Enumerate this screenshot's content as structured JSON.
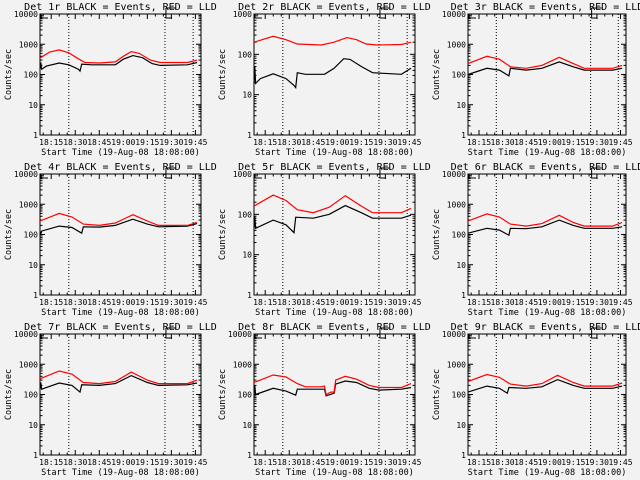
{
  "colors": {
    "background": "#f2f2f2",
    "events": "#000000",
    "lld": "#ff0000",
    "axis": "#000000"
  },
  "chart_data": {
    "type": "line",
    "layout": "3x3 grid",
    "xlabel": "Start Time (19-Aug-08 18:08:00)",
    "ylabel": "Counts/sec",
    "x_units": "minutes after 18:00",
    "xlim": [
      8,
      108.5
    ],
    "x_ticks": [
      15,
      30,
      45,
      60,
      75,
      90,
      105
    ],
    "x_tick_labels": [
      "18:15",
      "18:30",
      "18:45",
      "19:00",
      "19:15",
      "19:30",
      "19:45"
    ],
    "y_scale": "log",
    "vertical_markers": [
      26,
      86,
      103.6
    ],
    "legend": "in titles: BLACK = Events, RED = LLD",
    "panels": [
      {
        "title": "Det 1r BLACK = Events, RED = LLD",
        "ylim": [
          1,
          10000
        ],
        "y_tick_labels": [
          "10000",
          "1000",
          "100",
          "10",
          "1"
        ],
        "series": [
          {
            "name": "Events",
            "color": "black",
            "t": [
              8,
              8.5,
              9,
              12,
              20,
              26,
              32,
              33,
              34,
              40,
              55,
              60,
              66,
              72,
              78,
              83,
              100,
              106
            ],
            "v": [
              150,
              250,
              150,
              190,
              240,
              210,
              150,
              130,
              220,
              210,
              210,
              320,
              420,
              360,
              230,
              200,
              210,
              250
            ]
          },
          {
            "name": "LLD",
            "color": "red",
            "t": [
              8,
              14,
              20,
              26,
              32,
              36,
              45,
              55,
              60,
              65,
              70,
              77,
              83,
              100,
              106
            ],
            "v": [
              350,
              550,
              650,
              520,
              330,
              250,
              240,
              260,
              400,
              570,
              500,
              300,
              250,
              250,
              300
            ]
          }
        ]
      },
      {
        "title": "Det 2r BLACK = Events, RED = LLD",
        "ylim": [
          1,
          1000
        ],
        "y_tick_labels": [
          "1000",
          "100",
          "10",
          "1"
        ],
        "series": [
          {
            "name": "Events",
            "color": "black",
            "t": [
              8,
              8.5,
              9,
              12,
              20,
              28,
              33,
              34,
              35,
              40,
              52,
              58,
              64,
              68,
              75,
              82,
              100,
              106
            ],
            "v": [
              19,
              50,
              19,
              25,
              33,
              25,
              17,
              15,
              35,
              32,
              32,
              45,
              78,
              75,
              50,
              35,
              32,
              45
            ]
          },
          {
            "name": "LLD",
            "color": "red",
            "t": [
              8,
              20,
              28,
              35,
              50,
              58,
              66,
              72,
              78,
              85,
              100,
              106
            ],
            "v": [
              200,
              280,
              230,
              180,
              170,
              200,
              260,
              230,
              180,
              170,
              175,
              200
            ]
          }
        ]
      },
      {
        "title": "Det 3r BLACK = Events, RED = LLD",
        "ylim": [
          1,
          10000
        ],
        "y_tick_labels": [
          "10000",
          "1000",
          "100",
          "10",
          "1"
        ],
        "series": [
          {
            "name": "Events",
            "color": "black",
            "t": [
              8,
              20,
              28,
              34,
              35,
              45,
              55,
              66,
              75,
              82,
              100,
              106
            ],
            "v": [
              100,
              160,
              140,
              90,
              160,
              140,
              160,
              260,
              180,
              140,
              140,
              160
            ]
          },
          {
            "name": "LLD",
            "color": "red",
            "t": [
              8,
              20,
              28,
              35,
              45,
              55,
              66,
              75,
              82,
              100,
              106
            ],
            "v": [
              230,
              400,
              320,
              180,
              160,
              200,
              370,
              230,
              160,
              160,
              200
            ]
          }
        ]
      },
      {
        "title": "Det 4r BLACK = Events, RED = LLD",
        "ylim": [
          1,
          10000
        ],
        "y_tick_labels": [
          "10000",
          "1000",
          "100",
          "10",
          "1"
        ],
        "series": [
          {
            "name": "Events",
            "color": "black",
            "t": [
              8,
              8.5,
              9,
              20,
              28,
              34,
              35,
              45,
              55,
              66,
              75,
              82,
              100,
              106
            ],
            "v": [
              130,
              100,
              130,
              190,
              170,
              110,
              180,
              175,
              200,
              320,
              220,
              180,
              190,
              230
            ]
          },
          {
            "name": "LLD",
            "color": "red",
            "t": [
              8,
              20,
              28,
              35,
              45,
              55,
              66,
              75,
              82,
              100,
              106
            ],
            "v": [
              280,
              500,
              380,
              220,
              200,
              240,
              450,
              280,
              200,
              200,
              250
            ]
          }
        ]
      },
      {
        "title": "Det 5r BLACK = Events, RED = LLD",
        "ylim": [
          1,
          1000
        ],
        "y_tick_labels": [
          "1000",
          "100",
          "10",
          "1"
        ],
        "series": [
          {
            "name": "Events",
            "color": "black",
            "t": [
              8,
              8.5,
              9,
              20,
              28,
              33,
              34,
              45,
              55,
              65,
              75,
              82,
              100,
              106
            ],
            "v": [
              45,
              90,
              45,
              72,
              55,
              35,
              85,
              80,
              100,
              165,
              110,
              80,
              80,
              95
            ]
          },
          {
            "name": "LLD",
            "color": "red",
            "t": [
              8,
              20,
              28,
              35,
              45,
              55,
              65,
              75,
              82,
              100,
              106
            ],
            "v": [
              160,
              300,
              220,
              130,
              110,
              150,
              290,
              160,
              110,
              110,
              140
            ]
          }
        ]
      },
      {
        "title": "Det 6r BLACK = Events, RED = LLD",
        "ylim": [
          1,
          10000
        ],
        "y_tick_labels": [
          "10000",
          "1000",
          "100",
          "10",
          "1"
        ],
        "series": [
          {
            "name": "Events",
            "color": "black",
            "t": [
              8,
              20,
              28,
              34,
              35,
              45,
              55,
              66,
              75,
              82,
              100,
              106
            ],
            "v": [
              110,
              160,
              140,
              95,
              160,
              155,
              180,
              300,
              200,
              160,
              160,
              180
            ]
          },
          {
            "name": "LLD",
            "color": "red",
            "t": [
              8,
              20,
              28,
              35,
              45,
              55,
              66,
              75,
              82,
              100,
              106
            ],
            "v": [
              280,
              480,
              380,
              220,
              190,
              230,
              430,
              250,
              190,
              190,
              250
            ]
          }
        ]
      },
      {
        "title": "Det 7r BLACK = Events, RED = LLD",
        "ylim": [
          1,
          10000
        ],
        "y_tick_labels": [
          "10000",
          "1000",
          "100",
          "10",
          "1"
        ],
        "series": [
          {
            "name": "Events",
            "color": "black",
            "t": [
              8,
              8.5,
              9,
              20,
              28,
              33,
              34,
              45,
              55,
              65,
              75,
              82,
              100,
              106
            ],
            "v": [
              150,
              250,
              150,
              240,
              200,
              120,
              210,
              200,
              230,
              420,
              250,
              200,
              210,
              240
            ]
          },
          {
            "name": "LLD",
            "color": "red",
            "t": [
              8,
              20,
              28,
              35,
              45,
              55,
              65,
              75,
              82,
              100,
              106
            ],
            "v": [
              330,
              600,
              470,
              250,
              230,
              270,
              550,
              300,
              230,
              230,
              300
            ]
          }
        ]
      },
      {
        "title": "Det 8r BLACK = Events, RED = LLD",
        "ylim": [
          1,
          10000
        ],
        "y_tick_labels": [
          "10000",
          "1000",
          "100",
          "10",
          "1"
        ],
        "series": [
          {
            "name": "Events",
            "color": "black",
            "t": [
              8,
              8.5,
              9,
              20,
              28,
              34,
              35,
              50,
              52,
              53,
              58,
              59,
              65,
              72,
              80,
              86,
              100,
              106
            ],
            "v": [
              100,
              200,
              100,
              160,
              130,
              95,
              150,
              150,
              150,
              90,
              110,
              220,
              280,
              250,
              160,
              140,
              150,
              170
            ]
          },
          {
            "name": "LLD",
            "color": "red",
            "t": [
              8,
              20,
              28,
              35,
              40,
              50,
              52,
              53,
              56,
              58,
              59,
              65,
              72,
              80,
              86,
              100,
              106
            ],
            "v": [
              250,
              440,
              380,
              230,
              180,
              180,
              190,
              100,
              120,
              120,
              300,
              400,
              320,
              200,
              170,
              170,
              230
            ]
          }
        ]
      },
      {
        "title": "Det 9r BLACK = Events, RED = LLD",
        "ylim": [
          1,
          10000
        ],
        "y_tick_labels": [
          "10000",
          "1000",
          "100",
          "10",
          "1"
        ],
        "series": [
          {
            "name": "Events",
            "color": "black",
            "t": [
              8,
              20,
              28,
              33,
              34,
              45,
              55,
              65,
              75,
              82,
              100,
              106
            ],
            "v": [
              120,
              190,
              160,
              110,
              170,
              160,
              180,
              310,
              200,
              160,
              160,
              190
            ]
          },
          {
            "name": "LLD",
            "color": "red",
            "t": [
              8,
              20,
              28,
              35,
              45,
              55,
              65,
              75,
              82,
              100,
              106
            ],
            "v": [
              270,
              460,
              370,
              220,
              190,
              230,
              430,
              250,
              190,
              190,
              240
            ]
          }
        ]
      }
    ]
  }
}
